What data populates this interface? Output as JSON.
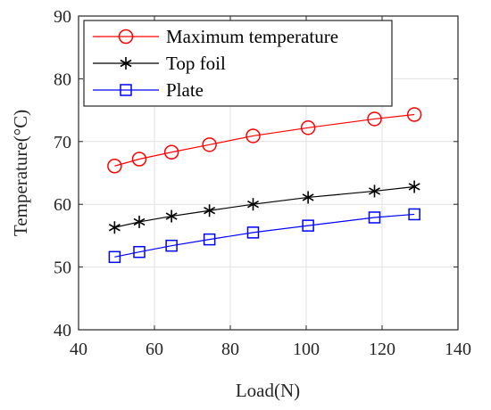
{
  "chart_data": {
    "type": "line",
    "xlabel": "Load(N)",
    "ylabel": "Temperature(°C)",
    "xlim": [
      40,
      140
    ],
    "ylim": [
      40,
      90
    ],
    "xticks": [
      40,
      60,
      80,
      100,
      120,
      140
    ],
    "yticks": [
      40,
      50,
      60,
      70,
      80,
      90
    ],
    "grid": true,
    "legend_position": "top-left",
    "x": [
      49.5,
      56,
      64.5,
      74.5,
      86,
      100.5,
      118,
      128.5
    ],
    "series": [
      {
        "name": "Maximum temperature",
        "color": "#ff0000",
        "marker": "circle",
        "values": [
          66.1,
          67.2,
          68.3,
          69.5,
          70.9,
          72.2,
          73.6,
          74.3
        ]
      },
      {
        "name": "Top foil",
        "color": "#000000",
        "marker": "asterisk",
        "values": [
          56.3,
          57.2,
          58.1,
          59.0,
          60.0,
          61.1,
          62.1,
          62.8
        ]
      },
      {
        "name": "Plate",
        "color": "#0000ff",
        "marker": "square",
        "values": [
          51.6,
          52.4,
          53.4,
          54.4,
          55.5,
          56.6,
          57.9,
          58.4
        ]
      }
    ]
  }
}
